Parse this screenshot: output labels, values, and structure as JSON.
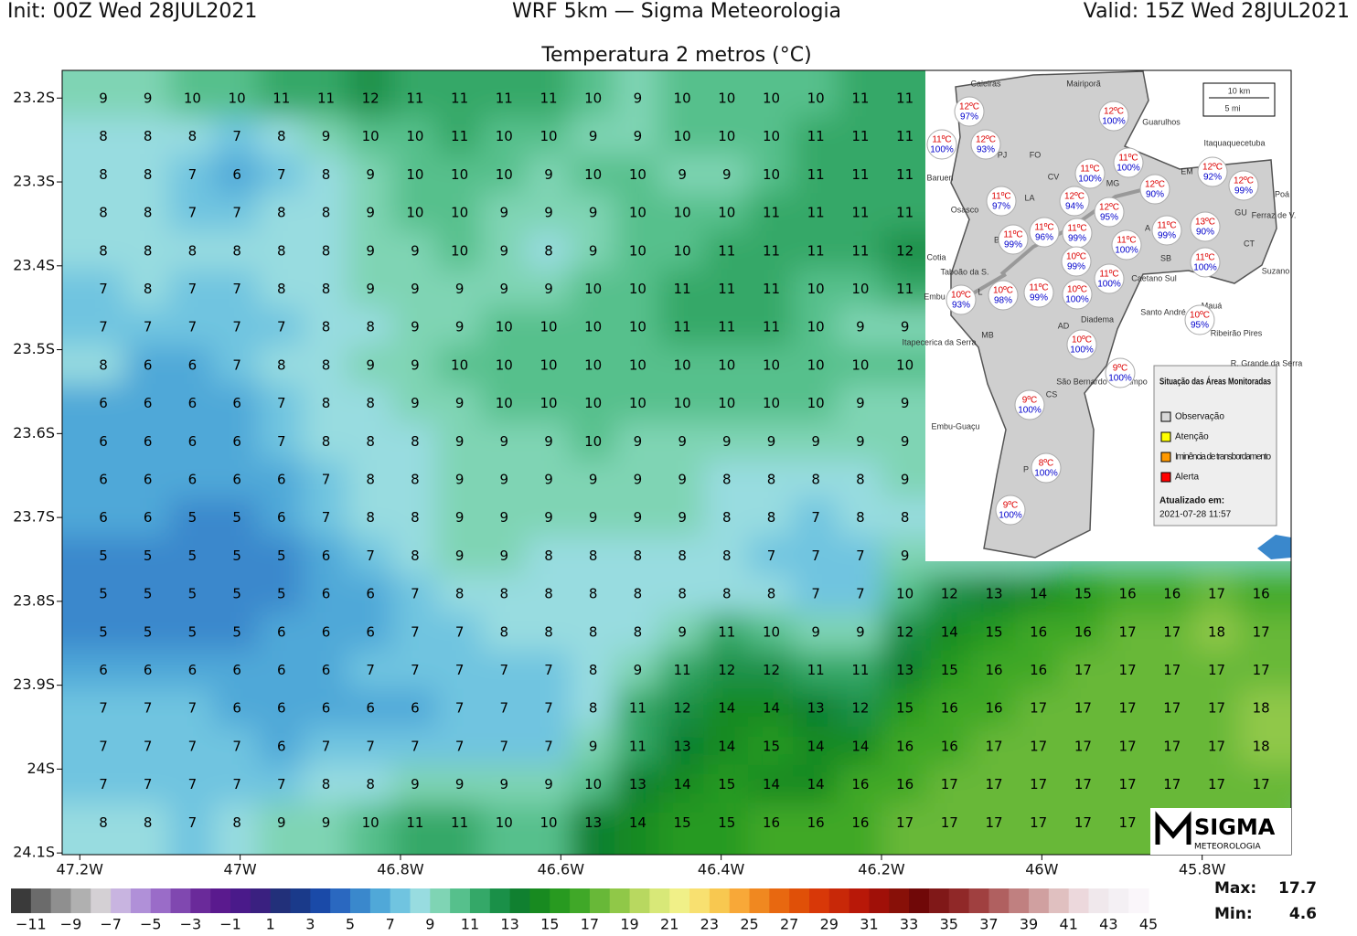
{
  "header": {
    "init": "Init: 00Z Wed 28JUL2021",
    "model": "WRF 5km — Sigma Meteorologia",
    "valid": "Valid: 15Z Wed 28JUL2021"
  },
  "chart_data": {
    "type": "contour-map",
    "title": "Temperatura 2 metros (°C)",
    "xlim": [
      -47.222,
      -45.689
    ],
    "ylim": [
      -24.102,
      -23.167
    ],
    "xticks": [
      {
        "value": -47.2,
        "label": "47.2W"
      },
      {
        "value": -47,
        "label": "47W"
      },
      {
        "value": -46.8,
        "label": "46.8W"
      },
      {
        "value": -46.6,
        "label": "46.6W"
      },
      {
        "value": -46.4,
        "label": "46.4W"
      },
      {
        "value": -46.2,
        "label": "46.2W"
      },
      {
        "value": -46,
        "label": "46W"
      },
      {
        "value": -45.8,
        "label": "45.8W"
      }
    ],
    "yticks": [
      {
        "value": -23.2,
        "label": "23.2S"
      },
      {
        "value": -23.3,
        "label": "23.3S"
      },
      {
        "value": -23.4,
        "label": "23.4S"
      },
      {
        "value": -23.5,
        "label": "23.5S"
      },
      {
        "value": -23.6,
        "label": "23.6S"
      },
      {
        "value": -23.7,
        "label": "23.7S"
      },
      {
        "value": -23.8,
        "label": "23.8S"
      },
      {
        "value": -23.9,
        "label": "23.9S"
      },
      {
        "value": -24,
        "label": "24S"
      },
      {
        "value": -24.1,
        "label": "24.1S"
      }
    ],
    "values": [
      [
        9,
        9,
        10,
        10,
        11,
        11,
        12,
        11,
        11,
        11,
        11,
        10,
        9,
        10,
        10,
        10,
        10,
        11,
        11
      ],
      [
        8,
        8,
        8,
        7,
        8,
        9,
        10,
        10,
        11,
        10,
        10,
        9,
        9,
        10,
        10,
        10,
        11,
        11,
        11
      ],
      [
        8,
        8,
        7,
        6,
        7,
        8,
        9,
        10,
        10,
        10,
        9,
        10,
        10,
        9,
        9,
        10,
        11,
        11,
        11
      ],
      [
        8,
        8,
        7,
        7,
        8,
        8,
        9,
        10,
        10,
        9,
        9,
        9,
        10,
        10,
        10,
        11,
        11,
        11,
        11
      ],
      [
        8,
        8,
        8,
        8,
        8,
        8,
        9,
        9,
        10,
        9,
        8,
        9,
        10,
        10,
        11,
        11,
        11,
        11,
        12
      ],
      [
        7,
        8,
        7,
        7,
        8,
        8,
        9,
        9,
        9,
        9,
        9,
        10,
        10,
        11,
        11,
        11,
        10,
        10,
        11
      ],
      [
        7,
        7,
        7,
        7,
        7,
        8,
        8,
        9,
        9,
        10,
        10,
        10,
        10,
        11,
        11,
        11,
        10,
        9,
        9
      ],
      [
        8,
        6,
        6,
        7,
        8,
        8,
        9,
        9,
        10,
        10,
        10,
        10,
        10,
        10,
        10,
        10,
        10,
        10,
        10
      ],
      [
        6,
        6,
        6,
        6,
        7,
        8,
        8,
        9,
        9,
        10,
        10,
        10,
        10,
        10,
        10,
        10,
        10,
        9,
        9
      ],
      [
        6,
        6,
        6,
        6,
        7,
        8,
        8,
        8,
        9,
        9,
        9,
        10,
        9,
        9,
        9,
        9,
        9,
        9,
        9
      ],
      [
        6,
        6,
        6,
        6,
        6,
        7,
        8,
        8,
        9,
        9,
        9,
        9,
        9,
        9,
        8,
        8,
        8,
        8,
        9
      ],
      [
        6,
        6,
        5,
        5,
        6,
        7,
        8,
        8,
        9,
        9,
        9,
        9,
        9,
        9,
        8,
        8,
        7,
        8,
        8
      ],
      [
        5,
        5,
        5,
        5,
        5,
        6,
        7,
        8,
        9,
        9,
        8,
        8,
        8,
        8,
        8,
        7,
        7,
        7,
        9
      ],
      [
        5,
        5,
        5,
        5,
        5,
        6,
        6,
        7,
        8,
        8,
        8,
        8,
        8,
        8,
        8,
        8,
        7,
        7,
        10,
        12,
        13,
        14,
        15,
        16,
        16,
        17,
        16
      ],
      [
        5,
        5,
        5,
        5,
        6,
        6,
        6,
        7,
        7,
        8,
        8,
        8,
        8,
        9,
        11,
        10,
        9,
        9,
        12,
        14,
        15,
        16,
        16,
        17,
        17,
        18,
        17
      ],
      [
        6,
        6,
        6,
        6,
        6,
        6,
        7,
        7,
        7,
        7,
        7,
        8,
        9,
        11,
        12,
        12,
        11,
        11,
        13,
        15,
        16,
        16,
        17,
        17,
        17,
        17,
        17
      ],
      [
        7,
        7,
        7,
        6,
        6,
        6,
        6,
        6,
        7,
        7,
        7,
        8,
        11,
        12,
        14,
        14,
        13,
        12,
        15,
        16,
        16,
        17,
        17,
        17,
        17,
        17,
        18
      ],
      [
        7,
        7,
        7,
        7,
        6,
        7,
        7,
        7,
        7,
        7,
        7,
        9,
        11,
        13,
        14,
        15,
        14,
        14,
        16,
        16,
        17,
        17,
        17,
        17,
        17,
        17,
        18
      ],
      [
        7,
        7,
        7,
        7,
        7,
        8,
        8,
        9,
        9,
        9,
        9,
        10,
        13,
        14,
        15,
        14,
        14,
        16,
        16,
        17,
        17,
        17,
        17,
        17,
        17,
        17,
        17
      ],
      [
        8,
        8,
        7,
        8,
        9,
        9,
        10,
        11,
        11,
        10,
        10,
        13,
        14,
        15,
        15,
        16,
        16,
        16,
        17,
        17,
        17,
        17,
        17,
        17,
        17
      ]
    ],
    "colorbar": {
      "lim": [
        -12,
        45
      ],
      "ticks": [
        {
          "value": -11,
          "label": "−11"
        },
        {
          "value": -9,
          "label": "−9"
        },
        {
          "value": -7,
          "label": "−7"
        },
        {
          "value": -5,
          "label": "−5"
        },
        {
          "value": -3,
          "label": "−3"
        },
        {
          "value": -1,
          "label": "−1"
        },
        1,
        3,
        5,
        7,
        9,
        11,
        13,
        15,
        17,
        19,
        21,
        23,
        25,
        27,
        29,
        31,
        33,
        35,
        37,
        39,
        41,
        43,
        45
      ],
      "colors": [
        "#3a3a3a",
        "#6b6b6b",
        "#8f8f8f",
        "#b0b0b0",
        "#d4d0d4",
        "#c8b4e0",
        "#b090d8",
        "#9a6cc8",
        "#8048b0",
        "#6a2a9a",
        "#5a1a8e",
        "#4a1a8a",
        "#3a2080",
        "#22307a",
        "#1a3a8a",
        "#1a4aa8",
        "#2a68c0",
        "#3a88cc",
        "#50a8d8",
        "#70c4e0",
        "#98dce0",
        "#7fd4b4",
        "#56c08c",
        "#34a868",
        "#1a9048",
        "#108030",
        "#188a20",
        "#289a20",
        "#40a828",
        "#68b838",
        "#90c848",
        "#b8d860",
        "#d8e878",
        "#f0f088",
        "#f8e070",
        "#f8c850",
        "#f8a838",
        "#f08820",
        "#e86810",
        "#e05008",
        "#d83808",
        "#c82808",
        "#b81808",
        "#a01008",
        "#881008",
        "#700808",
        "#801818",
        "#902828",
        "#a04040",
        "#b06060",
        "#c08080",
        "#d0a0a0",
        "#e0c0c0",
        "#ecd8dc",
        "#f0e8ec",
        "#f4f0f4",
        "#faf6fa"
      ]
    },
    "stats": {
      "max_label": "Max:",
      "max": 17.7,
      "min_label": "Min:",
      "min": 4.6
    }
  },
  "inset": {
    "stations": [
      {
        "temp": "12ºC",
        "humidity": "97%"
      },
      {
        "temp": "11ºC",
        "humidity": "100%"
      },
      {
        "temp": "12ºC",
        "humidity": "93%"
      },
      {
        "temp": "12ºC",
        "humidity": "100%"
      },
      {
        "temp": "11ºC",
        "humidity": "100%"
      },
      {
        "temp": "11ºC",
        "humidity": "100%"
      },
      {
        "temp": "12ºC",
        "humidity": "92%"
      },
      {
        "temp": "12ºC",
        "humidity": "99%"
      },
      {
        "temp": "12ºC",
        "humidity": "90%"
      },
      {
        "temp": "11ºC",
        "humidity": "97%"
      },
      {
        "temp": "12ºC",
        "humidity": "94%"
      },
      {
        "temp": "12ºC",
        "humidity": "95%"
      },
      {
        "temp": "11ºC",
        "humidity": "96%"
      },
      {
        "temp": "11ºC",
        "humidity": "99%"
      },
      {
        "temp": "11ºC",
        "humidity": "99%"
      },
      {
        "temp": "11ºC",
        "humidity": "99%"
      },
      {
        "temp": "13ºC",
        "humidity": "90%"
      },
      {
        "temp": "11ºC",
        "humidity": "100%"
      },
      {
        "temp": "10ºC",
        "humidity": "99%"
      },
      {
        "temp": "11ºC",
        "humidity": "100%"
      },
      {
        "temp": "11ºC",
        "humidity": "100%"
      },
      {
        "temp": "10ºC",
        "humidity": "93%"
      },
      {
        "temp": "10ºC",
        "humidity": "98%"
      },
      {
        "temp": "11ºC",
        "humidity": "99%"
      },
      {
        "temp": "10ºC",
        "humidity": "100%"
      },
      {
        "temp": "10ºC",
        "humidity": "95%"
      },
      {
        "temp": "10ºC",
        "humidity": "100%"
      },
      {
        "temp": "9ºC",
        "humidity": "100%"
      },
      {
        "temp": "9ºC",
        "humidity": "100%"
      },
      {
        "temp": "8ºC",
        "humidity": "100%"
      },
      {
        "temp": "9ºC",
        "humidity": "100%"
      }
    ],
    "places": [
      "Caieiras",
      "Mairiporã",
      "Guarulhos",
      "Itaquaquecetuba",
      "Barueri",
      "Osasco",
      "Poá",
      "Ferraz de V.",
      "Suzano",
      "Cotia",
      "Taboão da S.",
      "Embu",
      "Itapecerica da Serra",
      "Santo André",
      "Mauá",
      "Ribeirão Pires",
      "R. Grande da Serra",
      "São Bernardo do Campo",
      "Diadema",
      "Caetano Sul",
      "Embu-Guaçu",
      "FO",
      "CV",
      "PJ",
      "LA",
      "MG",
      "EM",
      "GU",
      "CT",
      "SB",
      "A",
      "B",
      "MB",
      "AD",
      "CS",
      "P",
      "L"
    ],
    "scale": [
      "10 km",
      "5 mi"
    ],
    "legend": {
      "title": "Situação das Áreas Monitoradas",
      "items": [
        {
          "label": "Observação",
          "color": "#d8d8d8"
        },
        {
          "label": "Atenção",
          "color": "#ffff00"
        },
        {
          "label": "Iminência de transbordamento",
          "color": "#ff9900"
        },
        {
          "label": "Alerta",
          "color": "#ff0000"
        }
      ],
      "updated_label": "Atualizado em:",
      "updated": "2021-07-28 11:57"
    }
  },
  "logo": {
    "name": "SIGMA",
    "sub": "METEOROLOGIA"
  }
}
